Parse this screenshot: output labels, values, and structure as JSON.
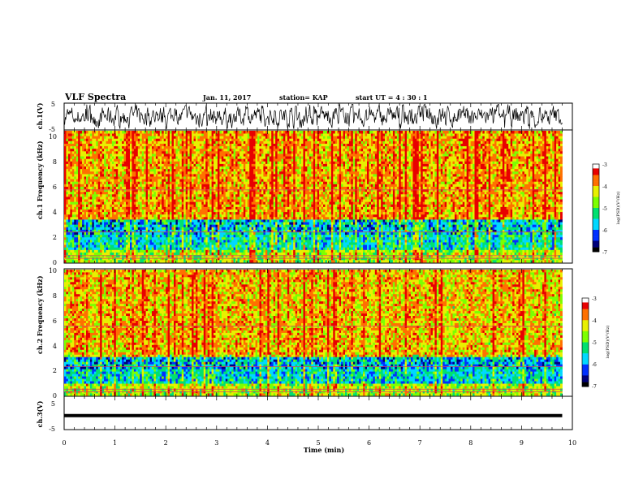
{
  "header": {
    "title": "VLF Spectra",
    "date": "Jan. 11, 2017",
    "station": "station= KAP",
    "start_ut": "start UT =  4 : 30 : 1"
  },
  "chart_data": [
    {
      "type": "line",
      "panel": "ch.1 waveform",
      "ylabel": "ch.1(V)",
      "ylim": [
        -5,
        5
      ],
      "ytick_labels": [
        "5",
        "-5"
      ],
      "xlim": [
        0,
        10
      ],
      "series": [
        {
          "values": "dense noisy voltage trace, roughly -4.5 to 4.5 V",
          "color": "#000000"
        }
      ]
    },
    {
      "type": "heatmap",
      "panel": "ch.1 spectrogram",
      "ylabel": "ch.1 Frequency (kHz)",
      "ylim": [
        0,
        10
      ],
      "ytick_labels": [
        "0",
        "2",
        "4",
        "6",
        "8",
        "10"
      ],
      "xlim": [
        0,
        9.8
      ],
      "colorbar": {
        "label": "log(PSD)(V²/Hz)",
        "range": [
          -7,
          -3
        ],
        "tick_labels": [
          "-3",
          "-4",
          "-5",
          "-6",
          "-7"
        ]
      },
      "bands": [
        {
          "from_khz": 0,
          "to_khz": 0.9,
          "typical": -4.6
        },
        {
          "from_khz": 0.9,
          "to_khz": 3.2,
          "typical": -5.5
        },
        {
          "from_khz": 3.2,
          "to_khz": 10,
          "typical": -4.0
        }
      ]
    },
    {
      "type": "heatmap",
      "panel": "ch.2 spectrogram",
      "ylabel": "ch.2 Frequency (kHz)",
      "ylim": [
        0,
        10
      ],
      "ytick_labels": [
        "0",
        "2",
        "4",
        "6",
        "8",
        "10"
      ],
      "xlim": [
        0,
        9.8
      ],
      "colorbar": {
        "label": "log(PSD)(V²/Hz)",
        "range": [
          -7,
          -3
        ],
        "tick_labels": [
          "-3",
          "-4",
          "-5",
          "-6",
          "-7"
        ]
      },
      "bands": [
        {
          "from_khz": 0,
          "to_khz": 0.9,
          "typical": -4.6
        },
        {
          "from_khz": 0.9,
          "to_khz": 3.0,
          "typical": -5.6
        },
        {
          "from_khz": 3.0,
          "to_khz": 10,
          "typical": -4.1
        }
      ]
    },
    {
      "type": "line",
      "panel": "ch.3 waveform",
      "ylabel": "ch.3(V)",
      "ylim": [
        -5,
        5
      ],
      "ytick_labels": [
        "5",
        "-5"
      ],
      "xlim": [
        0,
        10
      ],
      "series": [
        {
          "values": [
            [
              0,
              -0.8
            ],
            [
              9.8,
              -0.8
            ]
          ],
          "color": "#000000"
        }
      ]
    }
  ],
  "x_axis": {
    "label": "Time (min)",
    "tick_labels": [
      "0",
      "1",
      "2",
      "3",
      "4",
      "5",
      "6",
      "7",
      "8",
      "9",
      "10"
    ]
  },
  "colors": {
    "colormap": [
      "#000000",
      "#0000a0",
      "#0050ff",
      "#00d0ff",
      "#00e070",
      "#80ff00",
      "#f0f000",
      "#ff6000",
      "#e00000",
      "#ffffff"
    ]
  }
}
